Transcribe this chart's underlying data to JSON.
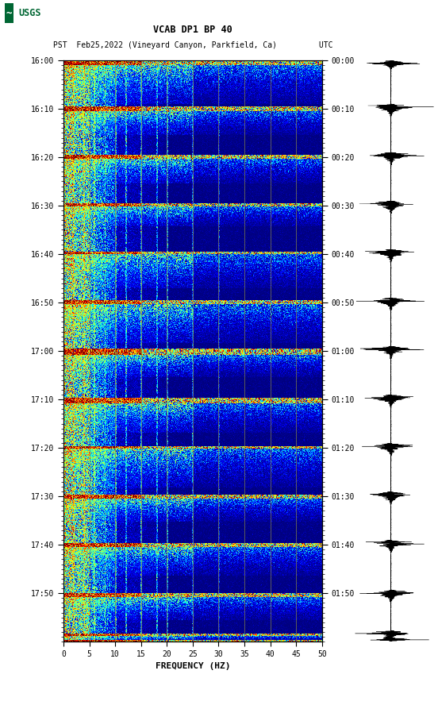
{
  "title_line1": "VCAB DP1 BP 40",
  "title_line2": "PST  Feb25,2022 (Vineyard Canyon, Parkfield, Ca)         UTC",
  "freq_min": 0,
  "freq_max": 50,
  "freq_ticks": [
    0,
    5,
    10,
    15,
    20,
    25,
    30,
    35,
    40,
    45,
    50
  ],
  "xlabel": "FREQUENCY (HZ)",
  "time_labels_left": [
    "16:00",
    "16:10",
    "16:20",
    "16:30",
    "16:40",
    "16:50",
    "17:00",
    "17:10",
    "17:20",
    "17:30",
    "17:40",
    "17:50"
  ],
  "time_labels_right": [
    "00:00",
    "00:10",
    "00:20",
    "00:30",
    "00:40",
    "00:50",
    "01:00",
    "01:10",
    "01:20",
    "01:30",
    "01:40",
    "01:50"
  ],
  "n_time_steps": 720,
  "n_freq_bins": 500,
  "bg_color": "white",
  "spectrogram_cmap": "jet",
  "vertical_line_color": "#888844",
  "vertical_line_positions": [
    5,
    10,
    15,
    20,
    25,
    30,
    35,
    40,
    45
  ],
  "usgs_green": "#006633",
  "waveform_color": "black",
  "seed": 42,
  "figsize": [
    5.52,
    8.93
  ],
  "dpi": 100
}
